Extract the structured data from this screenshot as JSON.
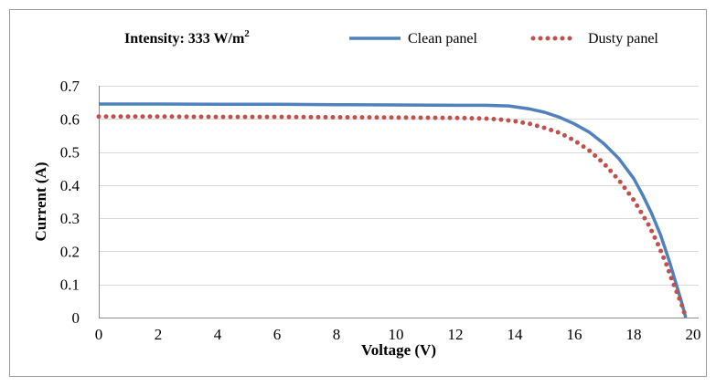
{
  "chart_data": {
    "type": "line",
    "intensity_label": "Intensity: 333 W/m",
    "intensity_superscript": "2",
    "xlabel": "Voltage (V)",
    "ylabel": "Current (A)",
    "xlim": [
      0,
      20
    ],
    "ylim": [
      0,
      0.7
    ],
    "x_ticks": [
      "0",
      "2",
      "4",
      "6",
      "8",
      "10",
      "12",
      "14",
      "16",
      "18",
      "20"
    ],
    "y_ticks": [
      "0",
      "0.1",
      "0.2",
      "0.3",
      "0.4",
      "0.5",
      "0.6",
      "0.7"
    ],
    "grid": "horizontal",
    "legend_position": "top",
    "series": [
      {
        "name": "Clean panel",
        "style": "solid",
        "color": "#4f81bd",
        "x": [
          0,
          2,
          4,
          6,
          8,
          10,
          12,
          13,
          13.8,
          14.5,
          15,
          15.5,
          16,
          16.5,
          17,
          17.5,
          18,
          18.3,
          18.6,
          18.9,
          19.2,
          19.4,
          19.6,
          19.75
        ],
        "y": [
          0.645,
          0.645,
          0.644,
          0.644,
          0.643,
          0.642,
          0.641,
          0.641,
          0.639,
          0.63,
          0.62,
          0.605,
          0.585,
          0.56,
          0.525,
          0.48,
          0.42,
          0.37,
          0.315,
          0.25,
          0.17,
          0.11,
          0.05,
          0.0
        ]
      },
      {
        "name": "Dusty panel",
        "style": "dotted",
        "color": "#c0504d",
        "x": [
          0,
          2,
          4,
          6,
          8,
          10,
          12,
          13,
          13.5,
          14,
          14.5,
          15,
          15.5,
          16,
          16.5,
          17,
          17.5,
          18,
          18.5,
          18.8,
          19.1,
          19.3,
          19.5,
          19.65,
          19.75
        ],
        "y": [
          0.607,
          0.607,
          0.606,
          0.606,
          0.605,
          0.604,
          0.603,
          0.601,
          0.598,
          0.593,
          0.585,
          0.573,
          0.558,
          0.535,
          0.505,
          0.465,
          0.415,
          0.355,
          0.28,
          0.225,
          0.16,
          0.11,
          0.065,
          0.03,
          0.0
        ]
      }
    ]
  }
}
